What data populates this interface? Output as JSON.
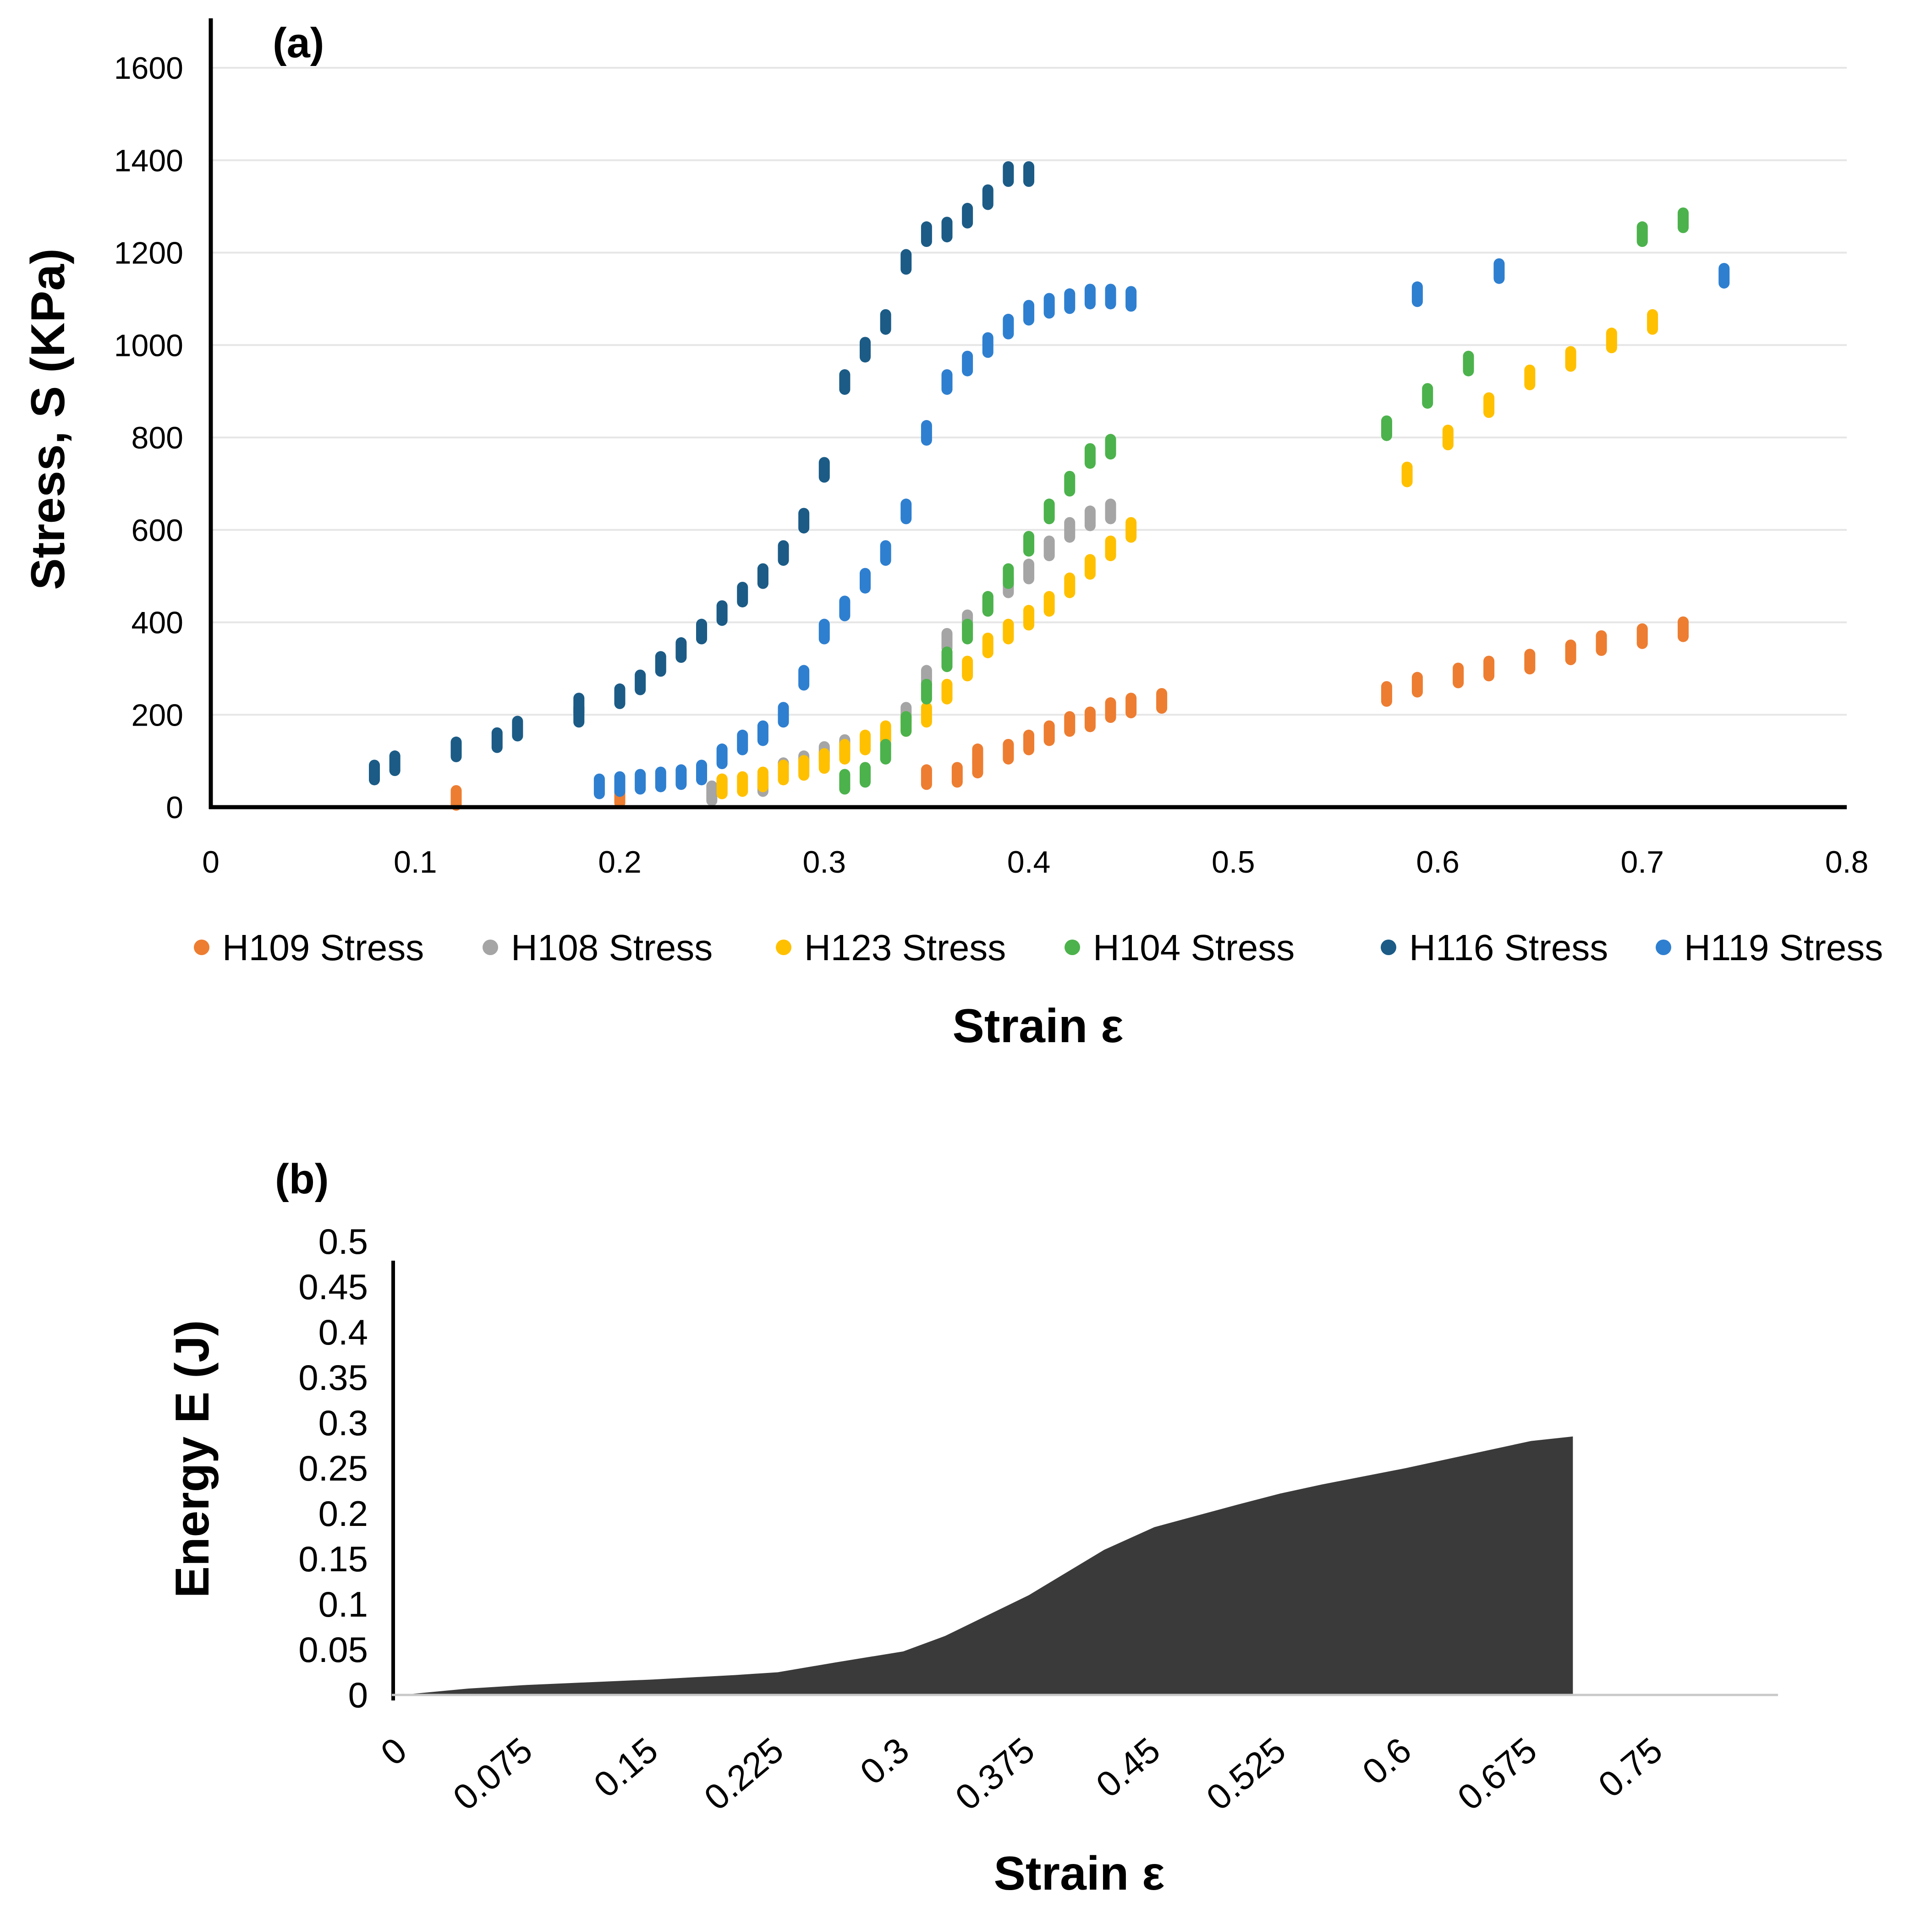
{
  "chart_data": [
    {
      "type": "scatter",
      "panel_label": "(a)",
      "xlabel": "Strain ε",
      "ylabel": "Stress, S (KPa)",
      "xlim": [
        0,
        0.8
      ],
      "ylim": [
        0,
        1600
      ],
      "x_ticks": [
        "0",
        "0.1",
        "0.2",
        "0.3",
        "0.4",
        "0.5",
        "0.6",
        "0.7",
        "0.8"
      ],
      "y_ticks": [
        "0",
        "200",
        "400",
        "600",
        "800",
        "1000",
        "1200",
        "1400",
        "1600"
      ],
      "grid": true,
      "legend_position": "bottom",
      "series": [
        {
          "name": "H109 Stress",
          "color": "#ED7D31",
          "points": [
            [
              0.12,
              20
            ],
            [
              0.2,
              25
            ],
            [
              0.25,
              45
            ],
            [
              0.35,
              65
            ],
            [
              0.365,
              70
            ],
            [
              0.375,
              90
            ],
            [
              0.375,
              110
            ],
            [
              0.39,
              120
            ],
            [
              0.4,
              140
            ],
            [
              0.41,
              160
            ],
            [
              0.42,
              180
            ],
            [
              0.43,
              190
            ],
            [
              0.44,
              210
            ],
            [
              0.45,
              220
            ],
            [
              0.465,
              230
            ],
            [
              0.575,
              245
            ],
            [
              0.59,
              265
            ],
            [
              0.61,
              285
            ],
            [
              0.625,
              300
            ],
            [
              0.645,
              315
            ],
            [
              0.665,
              335
            ],
            [
              0.68,
              355
            ],
            [
              0.7,
              370
            ],
            [
              0.72,
              385
            ]
          ]
        },
        {
          "name": "H108 Stress",
          "color": "#A5A5A5",
          "points": [
            [
              0.245,
              30
            ],
            [
              0.27,
              50
            ],
            [
              0.28,
              80
            ],
            [
              0.29,
              95
            ],
            [
              0.3,
              115
            ],
            [
              0.31,
              130
            ],
            [
              0.33,
              150
            ],
            [
              0.34,
              200
            ],
            [
              0.35,
              280
            ],
            [
              0.36,
              360
            ],
            [
              0.37,
              400
            ],
            [
              0.38,
              440
            ],
            [
              0.39,
              480
            ],
            [
              0.4,
              510
            ],
            [
              0.41,
              560
            ],
            [
              0.42,
              600
            ],
            [
              0.43,
              625
            ],
            [
              0.44,
              640
            ]
          ]
        },
        {
          "name": "H123 Stress",
          "color": "#FFC000",
          "points": [
            [
              0.25,
              45
            ],
            [
              0.26,
              50
            ],
            [
              0.27,
              60
            ],
            [
              0.28,
              75
            ],
            [
              0.29,
              85
            ],
            [
              0.3,
              100
            ],
            [
              0.31,
              120
            ],
            [
              0.32,
              140
            ],
            [
              0.33,
              160
            ],
            [
              0.34,
              180
            ],
            [
              0.35,
              200
            ],
            [
              0.36,
              250
            ],
            [
              0.37,
              300
            ],
            [
              0.38,
              350
            ],
            [
              0.39,
              380
            ],
            [
              0.4,
              410
            ],
            [
              0.41,
              440
            ],
            [
              0.42,
              480
            ],
            [
              0.43,
              520
            ],
            [
              0.44,
              560
            ],
            [
              0.45,
              600
            ],
            [
              0.585,
              720
            ],
            [
              0.605,
              800
            ],
            [
              0.625,
              870
            ],
            [
              0.645,
              930
            ],
            [
              0.665,
              970
            ],
            [
              0.685,
              1010
            ],
            [
              0.705,
              1050
            ]
          ]
        },
        {
          "name": "H104 Stress",
          "color": "#4CB24C",
          "points": [
            [
              0.31,
              55
            ],
            [
              0.32,
              70
            ],
            [
              0.33,
              120
            ],
            [
              0.34,
              180
            ],
            [
              0.35,
              250
            ],
            [
              0.36,
              320
            ],
            [
              0.37,
              380
            ],
            [
              0.38,
              440
            ],
            [
              0.39,
              500
            ],
            [
              0.4,
              570
            ],
            [
              0.41,
              640
            ],
            [
              0.42,
              700
            ],
            [
              0.43,
              760
            ],
            [
              0.44,
              780
            ],
            [
              0.575,
              820
            ],
            [
              0.595,
              890
            ],
            [
              0.615,
              960
            ],
            [
              0.7,
              1240
            ],
            [
              0.72,
              1270
            ]
          ]
        },
        {
          "name": "H116 Stress",
          "color": "#1B5B86",
          "points": [
            [
              0.08,
              75
            ],
            [
              0.09,
              95
            ],
            [
              0.12,
              125
            ],
            [
              0.14,
              145
            ],
            [
              0.15,
              170
            ],
            [
              0.18,
              200
            ],
            [
              0.18,
              220
            ],
            [
              0.2,
              240
            ],
            [
              0.21,
              270
            ],
            [
              0.22,
              310
            ],
            [
              0.23,
              340
            ],
            [
              0.24,
              380
            ],
            [
              0.25,
              420
            ],
            [
              0.26,
              460
            ],
            [
              0.27,
              500
            ],
            [
              0.28,
              550
            ],
            [
              0.29,
              620
            ],
            [
              0.3,
              730
            ],
            [
              0.31,
              920
            ],
            [
              0.32,
              990
            ],
            [
              0.33,
              1050
            ],
            [
              0.34,
              1180
            ],
            [
              0.35,
              1240
            ],
            [
              0.36,
              1250
            ],
            [
              0.37,
              1280
            ],
            [
              0.38,
              1320
            ],
            [
              0.39,
              1370
            ],
            [
              0.4,
              1370
            ]
          ]
        },
        {
          "name": "H119 Stress",
          "color": "#2E7FD0",
          "points": [
            [
              0.19,
              45
            ],
            [
              0.2,
              50
            ],
            [
              0.21,
              55
            ],
            [
              0.22,
              60
            ],
            [
              0.23,
              65
            ],
            [
              0.24,
              75
            ],
            [
              0.25,
              110
            ],
            [
              0.26,
              140
            ],
            [
              0.27,
              160
            ],
            [
              0.28,
              200
            ],
            [
              0.29,
              280
            ],
            [
              0.3,
              380
            ],
            [
              0.31,
              430
            ],
            [
              0.32,
              490
            ],
            [
              0.33,
              550
            ],
            [
              0.34,
              640
            ],
            [
              0.35,
              810
            ],
            [
              0.36,
              920
            ],
            [
              0.37,
              960
            ],
            [
              0.38,
              1000
            ],
            [
              0.39,
              1040
            ],
            [
              0.4,
              1070
            ],
            [
              0.41,
              1085
            ],
            [
              0.42,
              1095
            ],
            [
              0.43,
              1105
            ],
            [
              0.44,
              1105
            ],
            [
              0.45,
              1100
            ],
            [
              0.59,
              1110
            ],
            [
              0.63,
              1160
            ],
            [
              0.74,
              1150
            ]
          ]
        }
      ]
    },
    {
      "type": "area",
      "panel_label": "(b)",
      "xlabel": "Strain ε",
      "ylabel": "Energy E (J)",
      "xlim": [
        0,
        0.75
      ],
      "ylim": [
        0,
        0.5
      ],
      "x_ticks": [
        "0",
        "0.075",
        "0.15",
        "0.225",
        "0.3",
        "0.375",
        "0.45",
        "0.525",
        "0.6",
        "0.675",
        "0.75"
      ],
      "y_ticks": [
        "0",
        "0.05",
        "0.1",
        "0.15",
        "0.2",
        "0.25",
        "0.3",
        "0.35",
        "0.4",
        "0.45",
        "0.5"
      ],
      "grid": false,
      "color": "#3A3A3A",
      "x": [
        0,
        0.04,
        0.075,
        0.1,
        0.15,
        0.2,
        0.225,
        0.26,
        0.3,
        0.325,
        0.375,
        0.42,
        0.45,
        0.5,
        0.525,
        0.55,
        0.6,
        0.65,
        0.675,
        0.7
      ],
      "y": [
        0,
        0.007,
        0.011,
        0.013,
        0.017,
        0.022,
        0.025,
        0.036,
        0.048,
        0.065,
        0.11,
        0.16,
        0.185,
        0.21,
        0.222,
        0.232,
        0.25,
        0.27,
        0.28,
        0.285
      ]
    }
  ]
}
